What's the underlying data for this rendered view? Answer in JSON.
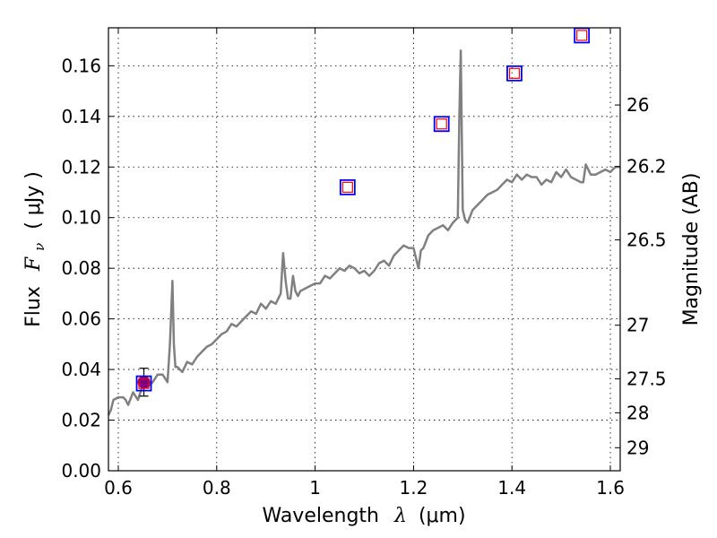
{
  "chart_data": {
    "type": "line",
    "title": "",
    "xlabel": "Wavelength",
    "xlabel_symbol": "λ",
    "xlabel_unit": "(μm)",
    "ylabel": "Flux",
    "ylabel_symbol": "F",
    "ylabel_subscript": "ν",
    "ylabel_unit": "( μJy )",
    "y2label": "Magnitude (AB)",
    "xlim": [
      0.58,
      1.62
    ],
    "ylim": [
      0.0,
      0.175
    ],
    "grid": true,
    "xticks": [
      0.6,
      0.8,
      1.0,
      1.2,
      1.4,
      1.6
    ],
    "xtick_labels": [
      "0.6",
      "0.8",
      "1",
      "1.2",
      "1.4",
      "1.6"
    ],
    "yticks": [
      0.0,
      0.02,
      0.04,
      0.06,
      0.08,
      0.1,
      0.12,
      0.14,
      0.16
    ],
    "ytick_labels": [
      "0.00",
      "0.02",
      "0.04",
      "0.06",
      "0.08",
      "0.10",
      "0.12",
      "0.14",
      "0.16"
    ],
    "y2ticks": [
      {
        "label": "26",
        "flux": 0.1445
      },
      {
        "label": "26.2",
        "flux": 0.1202
      },
      {
        "label": "26.5",
        "flux": 0.0912
      },
      {
        "label": "27",
        "flux": 0.0575
      },
      {
        "label": "27.5",
        "flux": 0.0363
      },
      {
        "label": "28",
        "flux": 0.0229
      },
      {
        "label": "29",
        "flux": 0.0091
      }
    ],
    "series": [
      {
        "name": "model spectrum",
        "color": "#808080",
        "x": [
          0.58,
          0.585,
          0.59,
          0.6,
          0.61,
          0.615,
          0.62,
          0.63,
          0.64,
          0.65,
          0.66,
          0.67,
          0.68,
          0.69,
          0.7,
          0.705,
          0.71,
          0.713,
          0.716,
          0.72,
          0.73,
          0.74,
          0.75,
          0.76,
          0.77,
          0.78,
          0.79,
          0.8,
          0.81,
          0.82,
          0.83,
          0.84,
          0.85,
          0.86,
          0.87,
          0.88,
          0.89,
          0.9,
          0.91,
          0.92,
          0.93,
          0.935,
          0.94,
          0.945,
          0.95,
          0.955,
          0.96,
          0.965,
          0.97,
          0.98,
          0.99,
          1.0,
          1.01,
          1.02,
          1.03,
          1.04,
          1.05,
          1.06,
          1.07,
          1.08,
          1.09,
          1.1,
          1.11,
          1.12,
          1.13,
          1.14,
          1.15,
          1.16,
          1.17,
          1.18,
          1.19,
          1.2,
          1.21,
          1.215,
          1.22,
          1.23,
          1.24,
          1.25,
          1.26,
          1.27,
          1.28,
          1.29,
          1.293,
          1.296,
          1.3,
          1.305,
          1.31,
          1.32,
          1.33,
          1.34,
          1.35,
          1.36,
          1.37,
          1.38,
          1.39,
          1.4,
          1.41,
          1.42,
          1.43,
          1.44,
          1.45,
          1.46,
          1.47,
          1.48,
          1.49,
          1.5,
          1.51,
          1.52,
          1.53,
          1.54,
          1.545,
          1.55,
          1.56,
          1.57,
          1.58,
          1.59,
          1.6,
          1.61,
          1.62
        ],
        "y": [
          0.022,
          0.024,
          0.028,
          0.029,
          0.029,
          0.028,
          0.026,
          0.031,
          0.028,
          0.034,
          0.033,
          0.035,
          0.038,
          0.038,
          0.035,
          0.05,
          0.075,
          0.05,
          0.041,
          0.041,
          0.039,
          0.043,
          0.042,
          0.045,
          0.047,
          0.049,
          0.05,
          0.052,
          0.054,
          0.055,
          0.058,
          0.057,
          0.059,
          0.061,
          0.063,
          0.062,
          0.066,
          0.064,
          0.067,
          0.066,
          0.07,
          0.086,
          0.075,
          0.068,
          0.068,
          0.077,
          0.071,
          0.069,
          0.071,
          0.072,
          0.073,
          0.074,
          0.074,
          0.077,
          0.076,
          0.078,
          0.08,
          0.079,
          0.081,
          0.08,
          0.078,
          0.079,
          0.077,
          0.079,
          0.082,
          0.083,
          0.081,
          0.085,
          0.087,
          0.089,
          0.088,
          0.088,
          0.08,
          0.087,
          0.088,
          0.093,
          0.095,
          0.096,
          0.097,
          0.095,
          0.098,
          0.1,
          0.14,
          0.166,
          0.103,
          0.099,
          0.098,
          0.103,
          0.105,
          0.107,
          0.109,
          0.11,
          0.111,
          0.113,
          0.115,
          0.114,
          0.117,
          0.115,
          0.117,
          0.116,
          0.116,
          0.113,
          0.115,
          0.114,
          0.118,
          0.116,
          0.119,
          0.116,
          0.115,
          0.114,
          0.114,
          0.121,
          0.117,
          0.117,
          0.118,
          0.119,
          0.118,
          0.12,
          0.12
        ]
      },
      {
        "name": "photometry outer squares",
        "marker": "square",
        "color": "#0000ff",
        "x": [
          0.652,
          1.066,
          1.257,
          1.405,
          1.542
        ],
        "y": [
          0.0345,
          0.112,
          0.137,
          0.157,
          0.172
        ]
      },
      {
        "name": "photometry inner squares",
        "marker": "square",
        "color": "#ff0000",
        "x": [
          0.652,
          1.066,
          1.257,
          1.405,
          1.542
        ],
        "y": [
          0.0345,
          0.112,
          0.137,
          0.157,
          0.172
        ]
      },
      {
        "name": "observed point",
        "marker": "circle",
        "color": "#800080",
        "x": [
          0.652
        ],
        "y": [
          0.035
        ],
        "yerr": [
          0.0055
        ]
      }
    ]
  }
}
